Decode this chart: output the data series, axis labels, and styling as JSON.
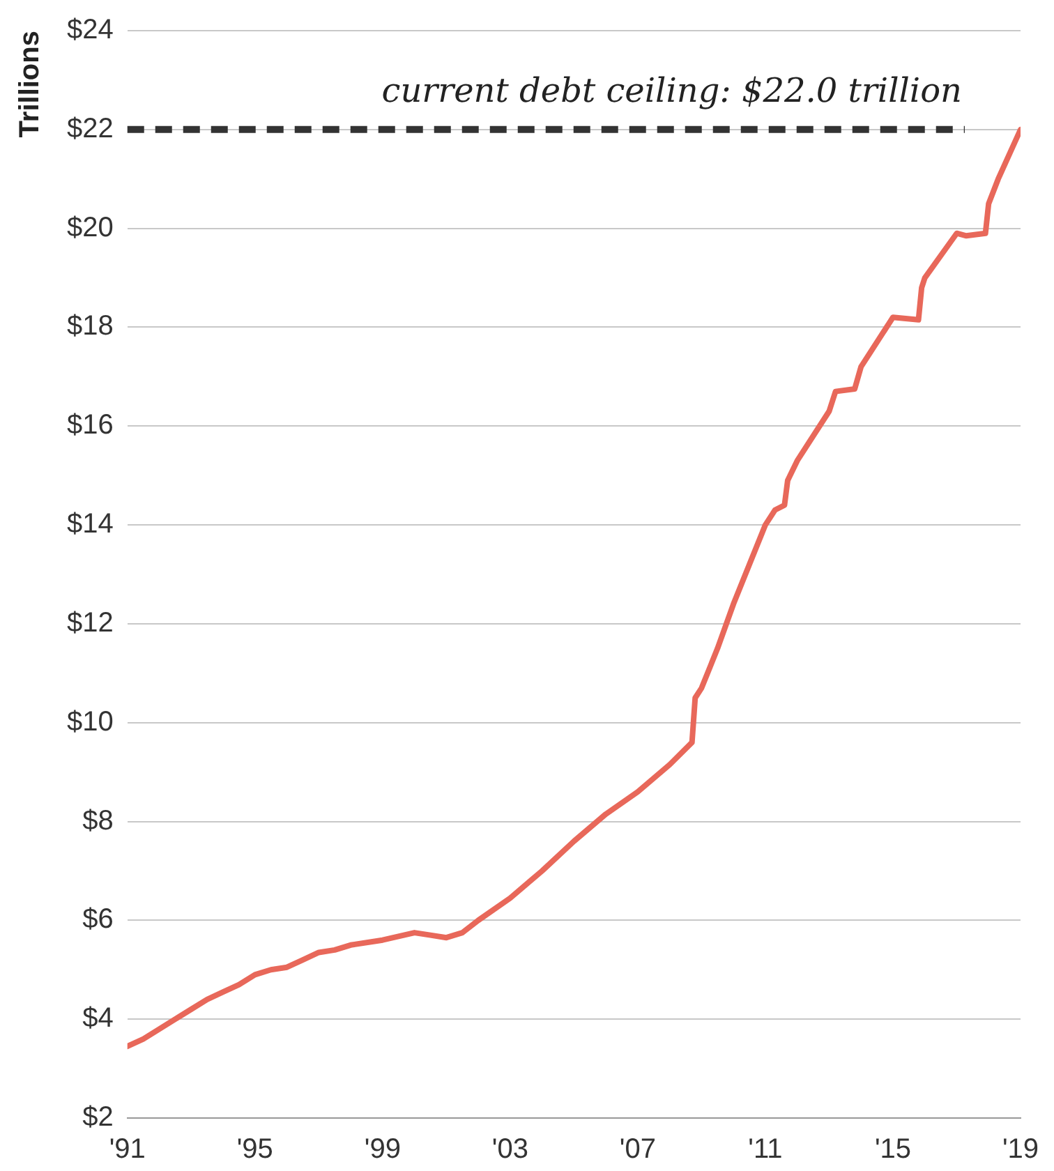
{
  "chart_data": {
    "type": "line",
    "ylabel": "Trillions",
    "x": [
      1991.0,
      1991.5,
      1992.0,
      1992.5,
      1993.0,
      1993.5,
      1994.0,
      1994.5,
      1995.0,
      1995.5,
      1996.0,
      1996.5,
      1997.0,
      1997.5,
      1998.0,
      1999.0,
      2000.0,
      2000.5,
      2001.0,
      2001.5,
      2002.0,
      2003.0,
      2004.0,
      2005.0,
      2006.0,
      2007.0,
      2008.0,
      2008.7,
      2008.8,
      2009.0,
      2009.5,
      2010.0,
      2010.5,
      2011.0,
      2011.3,
      2011.6,
      2011.7,
      2012.0,
      2013.0,
      2013.2,
      2013.8,
      2014.0,
      2015.0,
      2015.8,
      2015.9,
      2016.0,
      2017.0,
      2017.3,
      2017.9,
      2018.0,
      2018.3,
      2019.0
    ],
    "series": [
      {
        "color": "#e8685a",
        "values": [
          3.45,
          3.6,
          3.8,
          4.0,
          4.2,
          4.4,
          4.55,
          4.7,
          4.9,
          5.0,
          5.05,
          5.2,
          5.35,
          5.4,
          5.5,
          5.6,
          5.75,
          5.7,
          5.65,
          5.75,
          6.0,
          6.45,
          7.0,
          7.6,
          8.15,
          8.6,
          9.15,
          9.6,
          10.5,
          10.7,
          11.5,
          12.4,
          13.2,
          14.0,
          14.3,
          14.4,
          14.9,
          15.3,
          16.3,
          16.7,
          16.75,
          17.2,
          18.2,
          18.15,
          18.8,
          19.0,
          19.9,
          19.85,
          19.9,
          20.5,
          21.0,
          22.0
        ]
      }
    ],
    "xlim": [
      1991,
      2019
    ],
    "xticks": [
      {
        "value": 1991,
        "label": "'91"
      },
      {
        "value": 1995,
        "label": "'95"
      },
      {
        "value": 1999,
        "label": "'99"
      },
      {
        "value": 2003,
        "label": "'03"
      },
      {
        "value": 2007,
        "label": "'07"
      },
      {
        "value": 2011,
        "label": "'11"
      },
      {
        "value": 2015,
        "label": "'15"
      },
      {
        "value": 2019,
        "label": "'19"
      }
    ],
    "ylim": [
      2,
      24
    ],
    "yticks": [
      {
        "value": 2,
        "label": "$2"
      },
      {
        "value": 4,
        "label": "$4"
      },
      {
        "value": 6,
        "label": "$6"
      },
      {
        "value": 8,
        "label": "$8"
      },
      {
        "value": 10,
        "label": "$10"
      },
      {
        "value": 12,
        "label": "$12"
      },
      {
        "value": 14,
        "label": "$14"
      },
      {
        "value": 16,
        "label": "$16"
      },
      {
        "value": 18,
        "label": "$18"
      },
      {
        "value": 20,
        "label": "$20"
      },
      {
        "value": 22,
        "label": "$22"
      },
      {
        "value": 24,
        "label": "$24"
      }
    ],
    "ref_lines": [
      {
        "axis": "y",
        "value": 22,
        "label": "current debt ceiling: $22.0 trillion",
        "color": "#333333",
        "line_style": "dashed"
      }
    ],
    "grid": "y",
    "legend": false,
    "marker": "none",
    "line_style": "solid"
  }
}
